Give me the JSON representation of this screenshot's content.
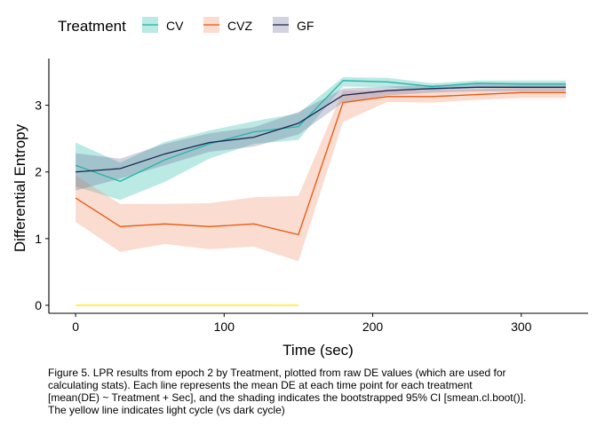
{
  "chart_data": {
    "type": "line",
    "xlabel": "Time (sec)",
    "ylabel": "Differential Entropy",
    "xlim": [
      -18,
      345
    ],
    "ylim": [
      -0.12,
      3.7
    ],
    "xticks": [
      0,
      100,
      200,
      300
    ],
    "yticks": [
      0,
      1,
      2,
      3
    ],
    "grid": false,
    "legend": {
      "title": "Treatment",
      "position": "top-left"
    },
    "x": [
      0,
      30,
      60,
      90,
      120,
      150,
      180,
      210,
      240,
      270,
      300,
      330
    ],
    "series": [
      {
        "name": "CV",
        "color": "#1FB5A5",
        "fill": "#1FB5A5",
        "values": [
          2.1,
          1.86,
          2.18,
          2.42,
          2.6,
          2.68,
          3.37,
          3.35,
          3.28,
          3.33,
          3.32,
          3.32
        ],
        "lower": [
          1.78,
          1.58,
          1.85,
          2.2,
          2.42,
          2.48,
          3.28,
          3.27,
          3.22,
          3.27,
          3.27,
          3.27
        ],
        "upper": [
          2.44,
          2.14,
          2.45,
          2.62,
          2.76,
          2.88,
          3.42,
          3.41,
          3.33,
          3.37,
          3.37,
          3.37
        ]
      },
      {
        "name": "CVZ",
        "color": "#E8570C",
        "fill": "#EE8A66",
        "values": [
          1.61,
          1.18,
          1.22,
          1.18,
          1.22,
          1.06,
          3.04,
          3.13,
          3.13,
          3.16,
          3.19,
          3.19
        ],
        "lower": [
          1.25,
          0.8,
          0.92,
          0.84,
          0.88,
          0.66,
          2.75,
          3.05,
          3.04,
          3.08,
          3.11,
          3.11
        ],
        "upper": [
          1.95,
          1.52,
          1.52,
          1.53,
          1.62,
          1.64,
          3.22,
          3.22,
          3.22,
          3.24,
          3.26,
          3.26
        ]
      },
      {
        "name": "GF",
        "color": "#1A2452",
        "fill": "#6E6E96",
        "values": [
          2.0,
          2.05,
          2.27,
          2.44,
          2.52,
          2.73,
          3.15,
          3.22,
          3.25,
          3.27,
          3.27,
          3.27
        ],
        "lower": [
          1.72,
          1.9,
          2.1,
          2.3,
          2.38,
          2.56,
          3.04,
          3.15,
          3.19,
          3.21,
          3.21,
          3.21
        ],
        "upper": [
          2.28,
          2.2,
          2.42,
          2.58,
          2.67,
          2.9,
          3.25,
          3.28,
          3.3,
          3.32,
          3.32,
          3.32
        ]
      }
    ],
    "light_cycle": {
      "color": "#FFEE33",
      "x_start": 0,
      "x_end": 150,
      "y": 0
    }
  },
  "caption": [
    "Figure 5. LPR results from epoch 2 by Treatment, plotted from raw DE values (which are used for",
    "calculating stats). Each line represents the mean DE at each time point for each treatment",
    "[mean(DE) ~ Treatment + Sec], and the shading indicates the bootstrapped 95% CI [smean.cl.boot()].",
    "The yellow line indicates light cycle (vs dark cycle)"
  ]
}
